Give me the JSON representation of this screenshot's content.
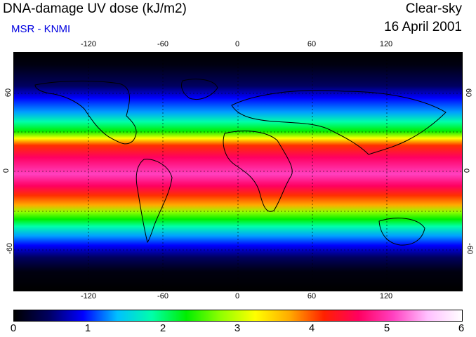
{
  "header": {
    "title": "DNA-damage UV dose (kJ/m2)",
    "subtitle": "MSR - KNMI",
    "condition": "Clear-sky",
    "date": "16 April 2001"
  },
  "map": {
    "lon_ticks": [
      "-120",
      "-60",
      "0",
      "60",
      "120"
    ],
    "lat_ticks_left": [
      "60",
      "0",
      "-60"
    ],
    "lat_ticks_right": [
      "60",
      "0",
      "-60"
    ],
    "graticule_lon": [
      -120,
      -60,
      0,
      60,
      120
    ],
    "graticule_lat": [
      60,
      30,
      0,
      -30,
      -60
    ]
  },
  "colorbar": {
    "labels": [
      "0",
      "1",
      "2",
      "3",
      "4",
      "5",
      "6"
    ],
    "colors": [
      "#000000",
      "#000060",
      "#0000ff",
      "#00c0ff",
      "#00ffaa",
      "#00ee00",
      "#90ff00",
      "#ffff00",
      "#ffaa00",
      "#ff2000",
      "#ff0060",
      "#ff40c0",
      "#ffc0ff",
      "#ffffff"
    ]
  }
}
